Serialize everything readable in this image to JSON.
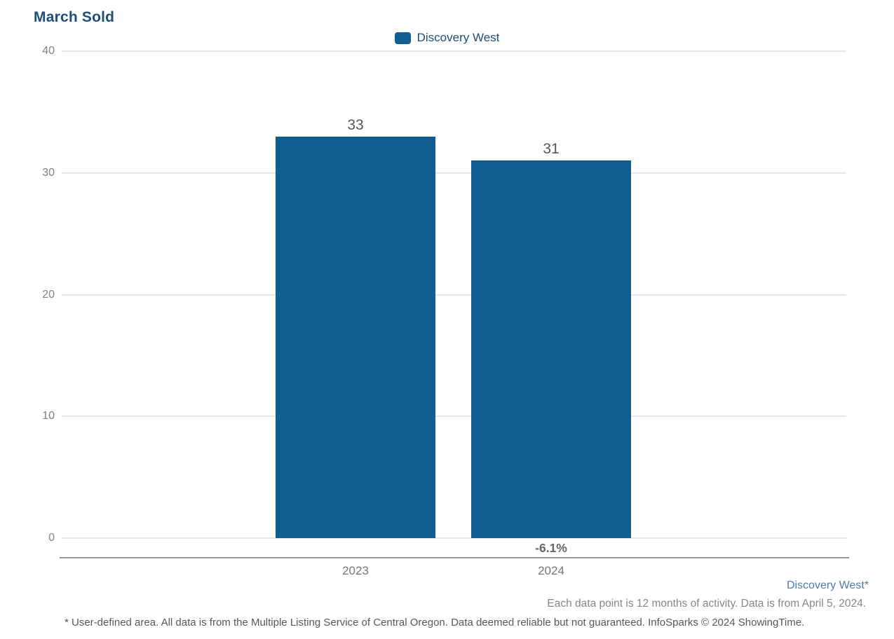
{
  "page": {
    "title": "March Sold"
  },
  "legend": {
    "label": "Discovery West",
    "swatch_color": "#115E93"
  },
  "chart_data": {
    "type": "bar",
    "title": "March Sold",
    "categories": [
      "2023",
      "2024"
    ],
    "series": [
      {
        "name": "Discovery West",
        "values": [
          33,
          31
        ]
      }
    ],
    "bar_value_labels": [
      "33",
      "31"
    ],
    "change_labels": [
      "",
      "-6.1%"
    ],
    "xlabel": "",
    "ylabel": "",
    "ylim": [
      0,
      40
    ],
    "yticks": [
      0,
      10,
      20,
      30,
      40
    ],
    "bar_color": "#115E93",
    "grid": true,
    "legend_position": "top-center"
  },
  "footer": {
    "area_label": "Discovery West*",
    "data_note": "Each data point is 12 months of activity. Data is from April 5, 2024.",
    "disclaimer": "* User-defined area. All data is from the Multiple Listing Service of Central Oregon. Data deemed reliable but not guaranteed. InfoSparks © 2024 ShowingTime."
  }
}
